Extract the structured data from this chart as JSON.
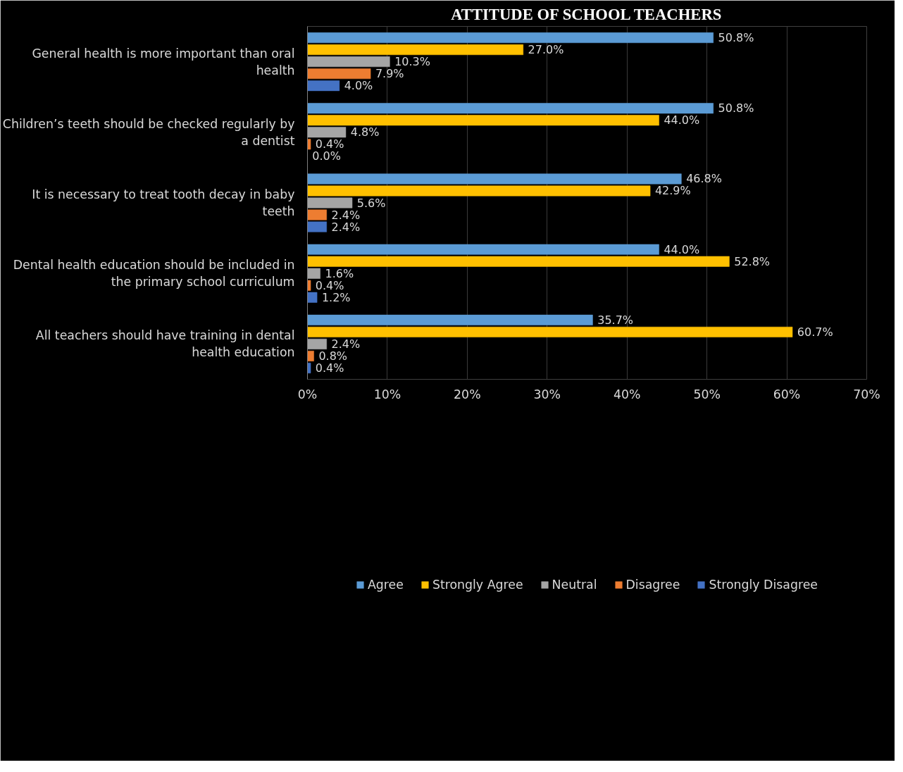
{
  "chart_data": {
    "type": "bar",
    "orientation": "horizontal",
    "title": "ATTITUDE OF SCHOOL TEACHERS",
    "categories": [
      "General health is more important than oral health",
      "Children’s teeth should be checked regularly by a dentist",
      "It is necessary to treat tooth decay in baby teeth",
      "Dental health education should be included in the primary school curriculum",
      "All teachers should have training in dental health education"
    ],
    "series": [
      {
        "name": "Agree",
        "color": "#5b9bd5",
        "values": [
          50.8,
          50.8,
          46.8,
          44.0,
          35.7
        ],
        "value_labels": [
          "50.8%",
          "50.8%",
          "46.8%",
          "44.0%",
          "35.7%"
        ]
      },
      {
        "name": "Strongly Agree",
        "color": "#ffc000",
        "values": [
          27.0,
          44.0,
          42.9,
          52.8,
          60.7
        ],
        "value_labels": [
          "27.0%",
          "44.0%",
          "42.9%",
          "52.8%",
          "60.7%"
        ]
      },
      {
        "name": "Neutral",
        "color": "#a5a5a5",
        "values": [
          10.3,
          4.8,
          5.6,
          1.6,
          2.4
        ],
        "value_labels": [
          "10.3%",
          "4.8%",
          "5.6%",
          "1.6%",
          "2.4%"
        ]
      },
      {
        "name": "Disagree",
        "color": "#ed7d31",
        "values": [
          7.9,
          0.4,
          2.4,
          0.4,
          0.8
        ],
        "value_labels": [
          "7.9%",
          "0.4%",
          "2.4%",
          "0.4%",
          "0.8%"
        ]
      },
      {
        "name": "Strongly Disagree",
        "color": "#4472c4",
        "values": [
          4.0,
          0.0,
          2.4,
          1.2,
          0.4
        ],
        "value_labels": [
          "4.0%",
          "0.0%",
          "2.4%",
          "1.2%",
          "0.4%"
        ]
      }
    ],
    "xlim": [
      0,
      70
    ],
    "xticks": [
      {
        "value": 0,
        "label": "0%"
      },
      {
        "value": 10,
        "label": "10%"
      },
      {
        "value": 20,
        "label": "20%"
      },
      {
        "value": 30,
        "label": "30%"
      },
      {
        "value": 40,
        "label": "40%"
      },
      {
        "value": 50,
        "label": "50%"
      },
      {
        "value": 60,
        "label": "60%"
      },
      {
        "value": 70,
        "label": "70%"
      }
    ],
    "grid": "x",
    "legend": "bottom"
  }
}
